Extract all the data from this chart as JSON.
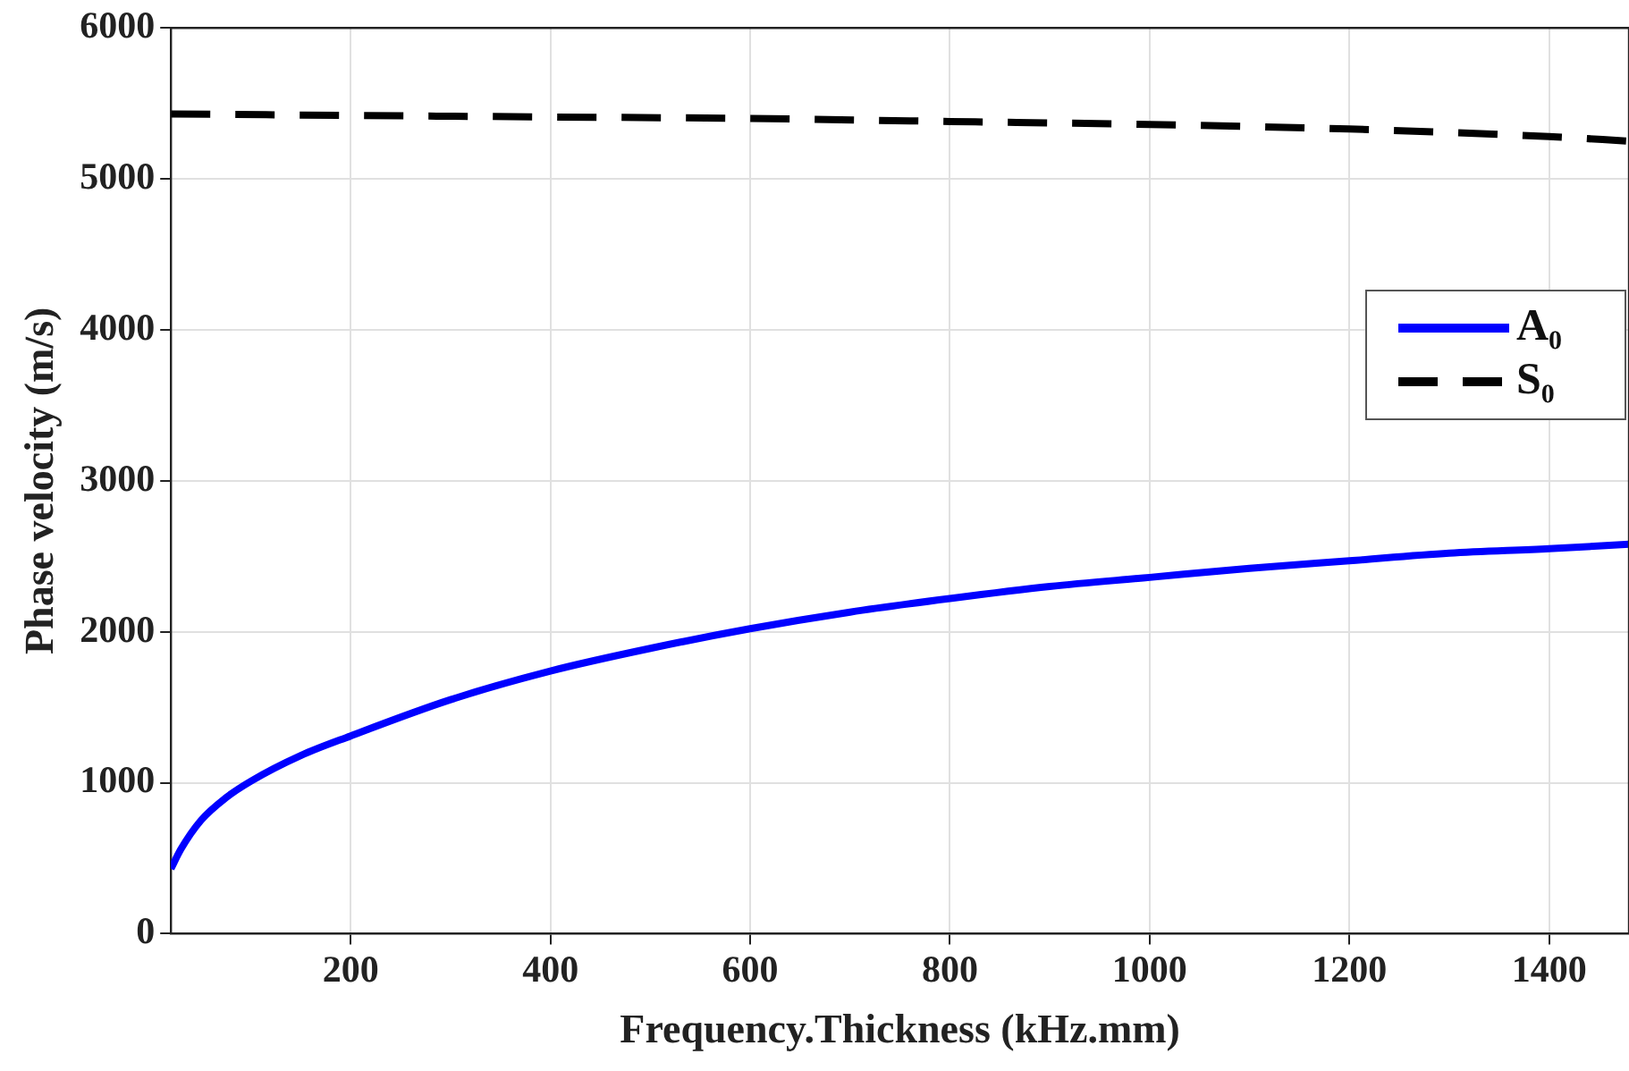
{
  "chart_data": {
    "type": "line",
    "xlabel": "Frequency.Thickness (kHz.mm)",
    "ylabel": "Phase velocity (m/s)",
    "xlim": [
      20,
      1480
    ],
    "ylim": [
      0,
      6000
    ],
    "xticks": [
      200,
      400,
      600,
      800,
      1000,
      1200,
      1400
    ],
    "yticks": [
      0,
      1000,
      2000,
      3000,
      4000,
      5000,
      6000
    ],
    "grid": true,
    "legend": "right",
    "marker": "none",
    "series": [
      {
        "name": "A₀",
        "color": "#0000ff",
        "line_style": "solid",
        "x": [
          20,
          30,
          50,
          75,
          100,
          150,
          200,
          300,
          400,
          500,
          600,
          700,
          800,
          900,
          1000,
          1100,
          1200,
          1300,
          1400,
          1480
        ],
        "values": [
          430,
          560,
          750,
          900,
          1010,
          1180,
          1310,
          1550,
          1740,
          1890,
          2020,
          2130,
          2220,
          2300,
          2360,
          2420,
          2470,
          2520,
          2550,
          2580
        ]
      },
      {
        "name": "S₀",
        "color": "#000000",
        "line_style": "dashed",
        "x": [
          20,
          200,
          400,
          600,
          800,
          1000,
          1200,
          1400,
          1480
        ],
        "values": [
          5430,
          5420,
          5410,
          5400,
          5380,
          5360,
          5330,
          5280,
          5250
        ]
      }
    ]
  }
}
